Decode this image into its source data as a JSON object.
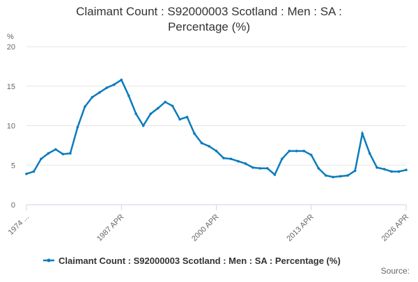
{
  "chart_data": {
    "type": "line",
    "title": "Claimant Count : S92000003 Scotland : Men : SA :",
    "title_line2": "Percentage (%)",
    "y_label": "%",
    "source": "Source:",
    "categories": [
      "1974 ...",
      null,
      null,
      null,
      null,
      null,
      null,
      null,
      null,
      null,
      null,
      null,
      null,
      "1987 APR",
      null,
      null,
      null,
      null,
      null,
      null,
      null,
      null,
      null,
      null,
      null,
      null,
      "2000 APR",
      null,
      null,
      null,
      null,
      null,
      null,
      null,
      null,
      null,
      null,
      null,
      null,
      "2013 APR",
      null,
      null,
      null,
      null,
      null,
      null,
      null,
      null,
      null,
      null,
      null,
      null,
      "2026 APR"
    ],
    "series": [
      {
        "name": "Claimant Count : S92000003 Scotland : Men : SA : Percentage (%)",
        "color": "#0a7bbd",
        "values": [
          3.9,
          4.2,
          5.8,
          6.5,
          7.0,
          6.4,
          6.5,
          9.8,
          12.4,
          13.6,
          14.2,
          14.8,
          15.2,
          15.8,
          13.8,
          11.5,
          10.0,
          11.5,
          12.2,
          13.0,
          12.5,
          10.8,
          11.1,
          9.0,
          7.8,
          7.4,
          6.8,
          5.9,
          5.8,
          5.5,
          5.2,
          4.7,
          4.6,
          4.6,
          3.8,
          5.8,
          6.8,
          6.8,
          6.8,
          6.3,
          4.6,
          3.7,
          3.5,
          3.6,
          3.7,
          4.3,
          9.0,
          6.5,
          4.7,
          4.5,
          4.2,
          4.2,
          4.4
        ]
      }
    ],
    "ylim": [
      0,
      20
    ],
    "yticks": [
      0,
      5,
      10,
      15,
      20
    ],
    "grid": true
  }
}
